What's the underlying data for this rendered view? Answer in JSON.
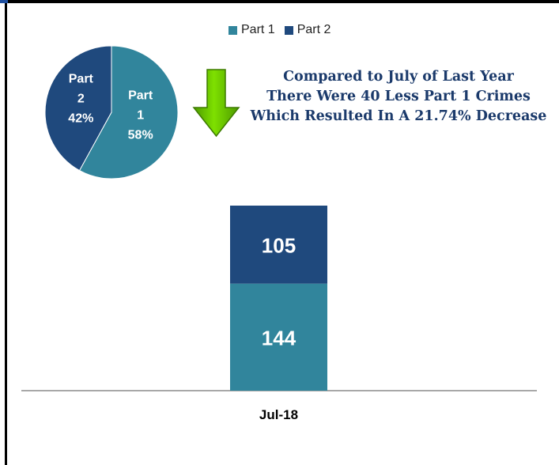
{
  "legend": [
    {
      "label": "Part 1",
      "color": "#31859c"
    },
    {
      "label": "Part 2",
      "color": "#1f497d"
    }
  ],
  "headline": {
    "line1": "Compared to July of Last Year",
    "line2": "There Were 40 Less Part 1 Crimes",
    "line3": "Which Resulted In A 21.74% Decrease"
  },
  "arrow": {
    "icon": "down-arrow-icon",
    "color": "#66cc00"
  },
  "chart_data": [
    {
      "type": "pie",
      "slices": [
        {
          "label": "Part 1",
          "value": 58,
          "color": "#31859c",
          "text_lines": [
            "Part",
            "1",
            "58%"
          ]
        },
        {
          "label": "Part 2",
          "value": 42,
          "color": "#1f497d",
          "text_lines": [
            "Part",
            "2",
            "42%"
          ]
        }
      ]
    },
    {
      "type": "bar",
      "stacked": true,
      "categories": [
        "Jul-18"
      ],
      "series": [
        {
          "name": "Part 1",
          "values": [
            144
          ],
          "color": "#31859c"
        },
        {
          "name": "Part 2",
          "values": [
            105
          ],
          "color": "#1f497d"
        }
      ]
    }
  ]
}
